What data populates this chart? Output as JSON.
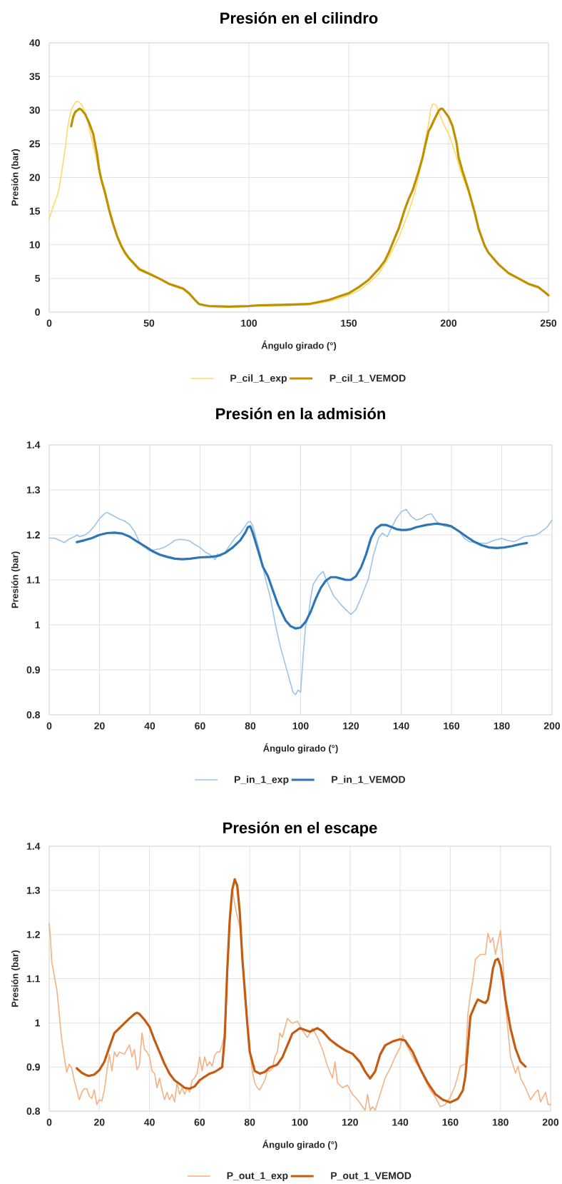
{
  "chart_data": [
    {
      "type": "line",
      "title": "Presión en el cilindro",
      "xlabel": "Ángulo girado (°)",
      "ylabel": "Presión (bar)",
      "xlim": [
        0,
        250
      ],
      "ylim": [
        0,
        40
      ],
      "xticks": [
        0,
        50,
        100,
        150,
        200,
        250
      ],
      "yticks": [
        0,
        5,
        10,
        15,
        20,
        25,
        30,
        35,
        40
      ],
      "grid": true,
      "legend": "bottom",
      "series": [
        {
          "name": "P_cil_1_exp",
          "color": "#ffd966",
          "x": [
            0,
            2,
            4,
            5,
            7,
            8,
            9,
            10,
            11,
            12,
            13,
            14,
            15,
            16,
            17,
            18,
            19,
            20,
            22,
            24,
            26,
            28,
            30,
            32,
            34,
            36,
            38,
            40,
            45,
            50,
            55,
            60,
            65,
            67,
            70,
            73,
            75,
            78,
            80,
            90,
            100,
            105,
            120,
            130,
            140,
            145,
            150,
            155,
            160,
            165,
            170,
            175,
            180,
            183,
            185,
            187,
            189,
            190,
            191,
            192,
            193,
            194,
            195,
            196,
            198,
            200,
            202,
            204,
            206,
            210,
            213,
            215,
            218,
            220,
            225,
            230,
            235,
            240,
            245,
            248,
            250
          ],
          "values": [
            13.8,
            15.7,
            17.3,
            18.4,
            22.3,
            24.4,
            26.9,
            28.7,
            30.1,
            30.6,
            31.1,
            31.3,
            31.2,
            30.9,
            30.4,
            29.6,
            28.7,
            27.3,
            24.8,
            22.3,
            19.5,
            17.4,
            14.9,
            12.8,
            11.0,
            9.7,
            8.6,
            7.8,
            6.2,
            5.6,
            4.9,
            4.1,
            3.6,
            3.4,
            2.7,
            1.7,
            1.2,
            1.0,
            0.9,
            0.8,
            0.9,
            1.0,
            1.0,
            1.1,
            1.6,
            2.0,
            2.5,
            3.2,
            4.3,
            5.7,
            8.1,
            11.0,
            14.9,
            17.7,
            20.2,
            23.4,
            26.5,
            28.0,
            30.1,
            30.9,
            30.9,
            30.6,
            29.7,
            29.0,
            27.6,
            26.5,
            24.8,
            23.0,
            20.9,
            17.8,
            14.6,
            12.2,
            9.7,
            8.7,
            7.0,
            5.7,
            4.9,
            4.1,
            3.6,
            3.0,
            2.4
          ]
        },
        {
          "name": "P_cil_1_VEMOD",
          "color": "#bf9000",
          "x": [
            11,
            12,
            13,
            15,
            16,
            18,
            20,
            22,
            24,
            25,
            26,
            28,
            30,
            32,
            34,
            36,
            38,
            40,
            45,
            50,
            55,
            60,
            65,
            67,
            70,
            73,
            75,
            78,
            80,
            90,
            100,
            105,
            120,
            130,
            140,
            145,
            150,
            155,
            160,
            165,
            168,
            170,
            173,
            175,
            178,
            180,
            182,
            185,
            187,
            188,
            190,
            191,
            193,
            195,
            196,
            197,
            198,
            200,
            202,
            204,
            205,
            207,
            210,
            213,
            215,
            218,
            220,
            225,
            230,
            235,
            240,
            245,
            248,
            250
          ],
          "values": [
            27.6,
            29.0,
            29.7,
            30.2,
            30.1,
            29.4,
            28.1,
            26.5,
            23.4,
            21.2,
            19.8,
            17.7,
            15.2,
            13.1,
            11.3,
            9.9,
            8.8,
            8.0,
            6.4,
            5.7,
            5.0,
            4.2,
            3.7,
            3.5,
            2.8,
            1.8,
            1.2,
            1.0,
            0.9,
            0.8,
            0.9,
            1.0,
            1.1,
            1.2,
            1.8,
            2.3,
            2.8,
            3.7,
            4.8,
            6.4,
            7.6,
            8.8,
            11.0,
            12.4,
            15.2,
            16.8,
            18.1,
            20.9,
            23.0,
            24.4,
            26.9,
            27.4,
            28.7,
            29.9,
            30.2,
            30.2,
            29.8,
            29.0,
            27.6,
            25.1,
            23.0,
            20.9,
            18.1,
            14.9,
            12.4,
            9.9,
            8.8,
            7.1,
            5.8,
            5.0,
            4.2,
            3.7,
            3.0,
            2.5
          ]
        }
      ]
    },
    {
      "type": "line",
      "title": "Presión en la admisión",
      "xlabel": "Ángulo girado (°)",
      "ylabel": "Presión (bar)",
      "xlim": [
        0,
        200
      ],
      "ylim": [
        0.8,
        1.4
      ],
      "xticks": [
        0,
        20,
        40,
        60,
        80,
        100,
        120,
        140,
        160,
        180,
        200
      ],
      "yticks": [
        0.8,
        0.9,
        1,
        1.1,
        1.2,
        1.3,
        1.4
      ],
      "grid": true,
      "legend": "bottom",
      "series": [
        {
          "name": "P_in_1_exp",
          "color": "#9dc3e6",
          "x": [
            0,
            2,
            4,
            6,
            8,
            10,
            11,
            12,
            14,
            16,
            18,
            20,
            22,
            23,
            24,
            26,
            28,
            30,
            32,
            34,
            36,
            38,
            40,
            42,
            44,
            46,
            48,
            50,
            52,
            54,
            56,
            58,
            60,
            62,
            64,
            66,
            67,
            68,
            70,
            72,
            74,
            76,
            78,
            79,
            80,
            81,
            82,
            84,
            86,
            88,
            90,
            92,
            94,
            96,
            97,
            98,
            99,
            100,
            101,
            102,
            103,
            104,
            105,
            107,
            109,
            110,
            113,
            116,
            118,
            120,
            122,
            124,
            127,
            129,
            131,
            132.5,
            134.5,
            136,
            138,
            140,
            142,
            144,
            146,
            148,
            150,
            152,
            154,
            157,
            160,
            163,
            165,
            167,
            171,
            174,
            177,
            180,
            182,
            185,
            189,
            193,
            195,
            198,
            200
          ],
          "values": [
            1.193,
            1.193,
            1.188,
            1.183,
            1.191,
            1.196,
            1.2,
            1.196,
            1.199,
            1.207,
            1.22,
            1.236,
            1.247,
            1.25,
            1.247,
            1.241,
            1.235,
            1.231,
            1.223,
            1.207,
            1.183,
            1.172,
            1.164,
            1.167,
            1.169,
            1.173,
            1.18,
            1.188,
            1.19,
            1.189,
            1.186,
            1.178,
            1.172,
            1.162,
            1.156,
            1.145,
            1.158,
            1.152,
            1.162,
            1.178,
            1.194,
            1.204,
            1.22,
            1.228,
            1.23,
            1.22,
            1.199,
            1.156,
            1.103,
            1.06,
            1.0,
            0.95,
            0.91,
            0.87,
            0.85,
            0.845,
            0.855,
            0.85,
            0.93,
            1.0,
            1.015,
            1.06,
            1.09,
            1.108,
            1.119,
            1.103,
            1.066,
            1.045,
            1.034,
            1.023,
            1.034,
            1.06,
            1.103,
            1.156,
            1.193,
            1.204,
            1.196,
            1.214,
            1.236,
            1.251,
            1.257,
            1.241,
            1.233,
            1.236,
            1.244,
            1.247,
            1.23,
            1.22,
            1.217,
            1.209,
            1.193,
            1.185,
            1.182,
            1.181,
            1.188,
            1.192,
            1.188,
            1.185,
            1.196,
            1.199,
            1.204,
            1.217,
            1.233
          ]
        },
        {
          "name": "P_in_1_VEMOD",
          "color": "#2e75b6",
          "x": [
            11,
            14,
            17,
            20,
            23,
            26,
            29,
            32,
            35,
            38,
            41,
            44,
            47,
            50,
            53,
            56,
            60,
            64,
            67,
            70,
            73,
            76,
            78,
            79,
            80,
            81,
            83,
            85,
            87,
            89,
            91,
            94,
            96,
            98,
            100,
            102,
            104,
            106,
            108,
            110,
            112,
            114,
            116,
            118,
            120,
            122,
            124,
            126,
            128,
            130,
            132,
            134,
            136,
            138,
            140,
            142,
            144,
            146,
            150,
            154,
            158,
            160,
            163,
            166,
            169,
            172,
            175,
            178,
            181,
            184,
            187,
            190
          ],
          "values": [
            1.184,
            1.188,
            1.193,
            1.2,
            1.204,
            1.205,
            1.203,
            1.196,
            1.185,
            1.175,
            1.164,
            1.156,
            1.151,
            1.147,
            1.146,
            1.147,
            1.15,
            1.151,
            1.153,
            1.16,
            1.172,
            1.188,
            1.205,
            1.217,
            1.219,
            1.204,
            1.167,
            1.129,
            1.108,
            1.076,
            1.045,
            1.01,
            0.997,
            0.992,
            0.994,
            1.007,
            1.029,
            1.058,
            1.082,
            1.098,
            1.106,
            1.106,
            1.103,
            1.1,
            1.1,
            1.108,
            1.127,
            1.156,
            1.193,
            1.214,
            1.222,
            1.222,
            1.218,
            1.213,
            1.211,
            1.211,
            1.213,
            1.217,
            1.222,
            1.225,
            1.222,
            1.219,
            1.208,
            1.196,
            1.185,
            1.177,
            1.172,
            1.171,
            1.172,
            1.175,
            1.179,
            1.182
          ]
        }
      ]
    },
    {
      "type": "line",
      "title": "Presión en el escape",
      "xlabel": "Ángulo girado (°)",
      "ylabel": "Presión (bar)",
      "xlim": [
        0,
        200
      ],
      "ylim": [
        0.8,
        1.4
      ],
      "xticks": [
        0,
        20,
        40,
        60,
        80,
        100,
        120,
        140,
        160,
        180,
        200
      ],
      "yticks": [
        0.8,
        0.9,
        1,
        1.1,
        1.2,
        1.3,
        1.4
      ],
      "grid": true,
      "legend": "bottom",
      "series": [
        {
          "name": "P_out_1_exp",
          "color": "#f4b183",
          "x": [
            0,
            0.5,
            1,
            2,
            3,
            4,
            5,
            6,
            7,
            8,
            9,
            10,
            11,
            12,
            13,
            14,
            15,
            16,
            17,
            18,
            19,
            20,
            21,
            22,
            23,
            24,
            25,
            26,
            27,
            28,
            30,
            31,
            32,
            33,
            34,
            35,
            36,
            37,
            38,
            39,
            40,
            41,
            42,
            43,
            44,
            45,
            46,
            47,
            48,
            49,
            50,
            51,
            52,
            53,
            54,
            55,
            56,
            57,
            58,
            59,
            60,
            61,
            62,
            63,
            64,
            65,
            66,
            67,
            68,
            69,
            70,
            71,
            72,
            73,
            74,
            75,
            76,
            77,
            78,
            79,
            80,
            81,
            82,
            83,
            84,
            85,
            86,
            87,
            88,
            89,
            90,
            91,
            92,
            93,
            95,
            97,
            99,
            101,
            103,
            105,
            107,
            109,
            111,
            113,
            114,
            115,
            117,
            119,
            121,
            123,
            125,
            126,
            127,
            128,
            129,
            130,
            132,
            134,
            136,
            138,
            140,
            141,
            142,
            144,
            146,
            148,
            150,
            152,
            154,
            156,
            158,
            160,
            162,
            164,
            166,
            167,
            168,
            169,
            170,
            172,
            174,
            175,
            176,
            177,
            178,
            179,
            180,
            181,
            182,
            184,
            186,
            187,
            188,
            190,
            192,
            194,
            195,
            196,
            198,
            199,
            200
          ],
          "values": [
            1.225,
            1.193,
            1.139,
            1.107,
            1.077,
            1.02,
            0.961,
            0.923,
            0.888,
            0.907,
            0.897,
            0.87,
            0.848,
            0.826,
            0.843,
            0.851,
            0.851,
            0.834,
            0.829,
            0.848,
            0.815,
            0.826,
            0.823,
            0.848,
            0.891,
            0.929,
            0.891,
            0.934,
            0.923,
            0.934,
            0.929,
            0.94,
            0.95,
            0.923,
            0.94,
            0.894,
            0.905,
            0.977,
            0.94,
            0.934,
            0.923,
            0.891,
            0.886,
            0.853,
            0.875,
            0.848,
            0.826,
            0.843,
            0.826,
            0.838,
            0.821,
            0.864,
            0.838,
            0.853,
            0.838,
            0.853,
            0.843,
            0.87,
            0.875,
            0.886,
            0.923,
            0.891,
            0.923,
            0.902,
            0.912,
            0.902,
            0.926,
            0.934,
            0.934,
            0.95,
            0.977,
            1.096,
            1.247,
            1.306,
            1.269,
            1.241,
            1.22,
            1.155,
            1.085,
            1.004,
            0.94,
            0.891,
            0.864,
            0.853,
            0.848,
            0.859,
            0.87,
            0.891,
            0.891,
            0.897,
            0.923,
            0.934,
            0.977,
            0.967,
            1.01,
            0.999,
            1.004,
            0.983,
            0.967,
            0.988,
            0.967,
            0.94,
            0.902,
            0.875,
            0.912,
            0.864,
            0.853,
            0.859,
            0.838,
            0.826,
            0.81,
            0.802,
            0.838,
            0.802,
            0.81,
            0.802,
            0.838,
            0.875,
            0.897,
            0.923,
            0.945,
            0.972,
            0.956,
            0.934,
            0.912,
            0.896,
            0.87,
            0.848,
            0.832,
            0.81,
            0.815,
            0.832,
            0.859,
            0.902,
            0.907,
            1.02,
            1.064,
            1.096,
            1.144,
            1.155,
            1.155,
            1.203,
            1.182,
            1.193,
            1.155,
            1.182,
            1.209,
            1.139,
            1.042,
            0.923,
            0.886,
            0.902,
            0.875,
            0.853,
            0.826,
            0.843,
            0.848,
            0.821,
            0.843,
            0.815,
            0.815
          ]
        },
        {
          "name": "P_out_1_VEMOD",
          "color": "#c55a11",
          "x": [
            11,
            13,
            15,
            16,
            18,
            20,
            22,
            24,
            26,
            28,
            30,
            32,
            34,
            35,
            36,
            38,
            40,
            42,
            44,
            46,
            48,
            50,
            52,
            54,
            56,
            58,
            60,
            62,
            64,
            66,
            68,
            69,
            70,
            71,
            72,
            73,
            74,
            75,
            76,
            77,
            78,
            79,
            80,
            82,
            84,
            86,
            88,
            90,
            91,
            93,
            95,
            97,
            100,
            102,
            104,
            107,
            109,
            112,
            115,
            118,
            121,
            124,
            126,
            128,
            130,
            132,
            134,
            137,
            140,
            142,
            145,
            148,
            151,
            154,
            157,
            160,
            163,
            165,
            166,
            167,
            168,
            170,
            171,
            173,
            174,
            175,
            176,
            177,
            178,
            179,
            180,
            181,
            182,
            184,
            186,
            188,
            190
          ],
          "values": [
            0.897,
            0.887,
            0.881,
            0.88,
            0.883,
            0.893,
            0.912,
            0.945,
            0.977,
            0.988,
            0.999,
            1.01,
            1.02,
            1.023,
            1.02,
            1.007,
            0.991,
            0.961,
            0.934,
            0.907,
            0.885,
            0.87,
            0.862,
            0.853,
            0.851,
            0.856,
            0.87,
            0.878,
            0.885,
            0.889,
            0.896,
            0.9,
            0.966,
            1.117,
            1.231,
            1.301,
            1.325,
            1.311,
            1.252,
            1.149,
            1.074,
            0.999,
            0.934,
            0.891,
            0.885,
            0.889,
            0.899,
            0.903,
            0.906,
            0.922,
            0.949,
            0.976,
            0.988,
            0.984,
            0.98,
            0.988,
            0.981,
            0.962,
            0.949,
            0.938,
            0.93,
            0.911,
            0.89,
            0.874,
            0.89,
            0.928,
            0.949,
            0.958,
            0.963,
            0.96,
            0.934,
            0.896,
            0.864,
            0.839,
            0.826,
            0.82,
            0.828,
            0.847,
            0.879,
            0.945,
            1.015,
            1.042,
            1.053,
            1.047,
            1.045,
            1.053,
            1.085,
            1.123,
            1.142,
            1.145,
            1.129,
            1.096,
            1.053,
            0.988,
            0.942,
            0.912,
            0.901
          ]
        }
      ]
    }
  ]
}
